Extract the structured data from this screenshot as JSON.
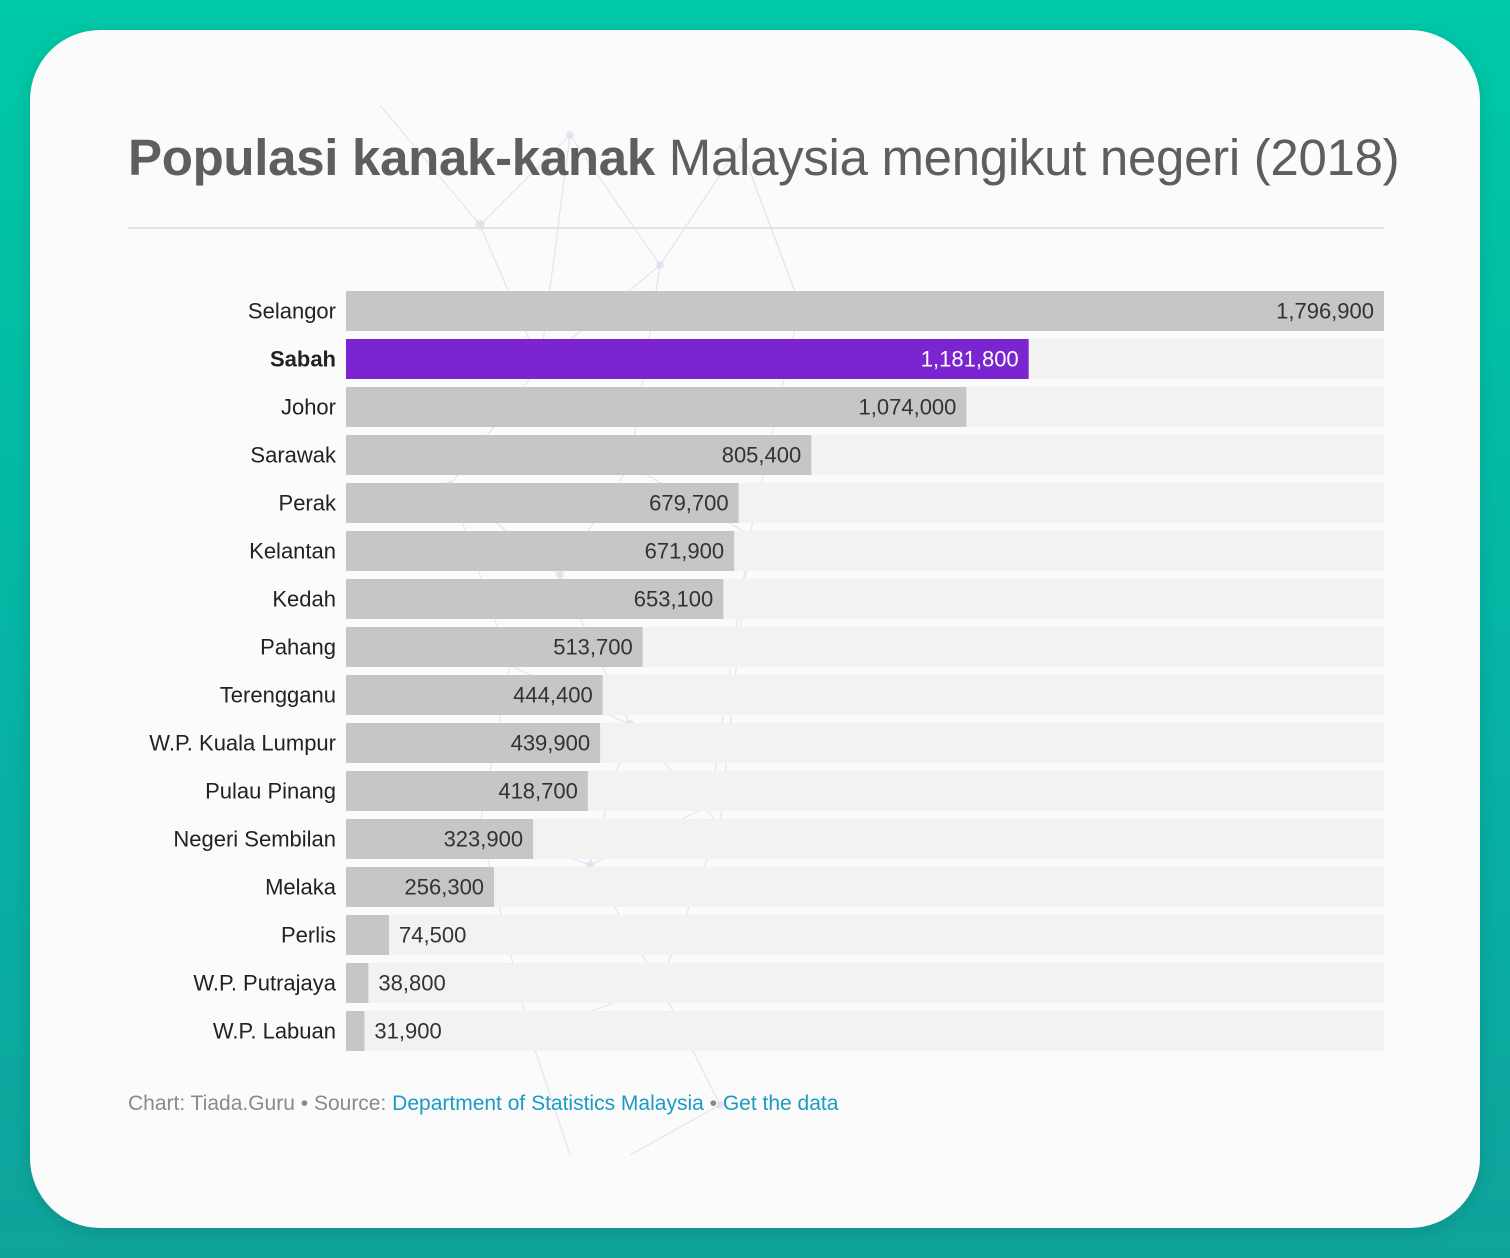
{
  "title": {
    "bold": "Populasi kanak-kanak",
    "rest": " Malaysia mengikut negeri (2018)"
  },
  "chart_data": {
    "type": "bar",
    "orientation": "horizontal",
    "categories": [
      "Selangor",
      "Sabah",
      "Johor",
      "Sarawak",
      "Perak",
      "Kelantan",
      "Kedah",
      "Pahang",
      "Terengganu",
      "W.P. Kuala Lumpur",
      "Pulau Pinang",
      "Negeri Sembilan",
      "Melaka",
      "Perlis",
      "W.P. Putrajaya",
      "W.P. Labuan"
    ],
    "values": [
      1796900,
      1181800,
      1074000,
      805400,
      679700,
      671900,
      653100,
      513700,
      444400,
      439900,
      418700,
      323900,
      256300,
      74500,
      38800,
      31900
    ],
    "value_labels": [
      "1,796,900",
      "1,181,800",
      "1,074,000",
      "805,400",
      "679,700",
      "671,900",
      "653,100",
      "513,700",
      "444,400",
      "439,900",
      "418,700",
      "323,900",
      "256,300",
      "74,500",
      "38,800",
      "31,900"
    ],
    "highlight": "Sabah",
    "xlim": [
      0,
      1796900
    ],
    "colors": {
      "bar": "#c6c6c6",
      "highlight": "#7b25d0",
      "track": "#f2f2f2",
      "label": "#222222",
      "value": "#333333",
      "highlight_value": "#ffffff"
    }
  },
  "footer": {
    "chart_credit": "Chart: Tiada.Guru",
    "separator": " • ",
    "source_prefix": "Source: ",
    "source_link": "Department of Statistics Malaysia",
    "get_data_link": "Get the data"
  }
}
